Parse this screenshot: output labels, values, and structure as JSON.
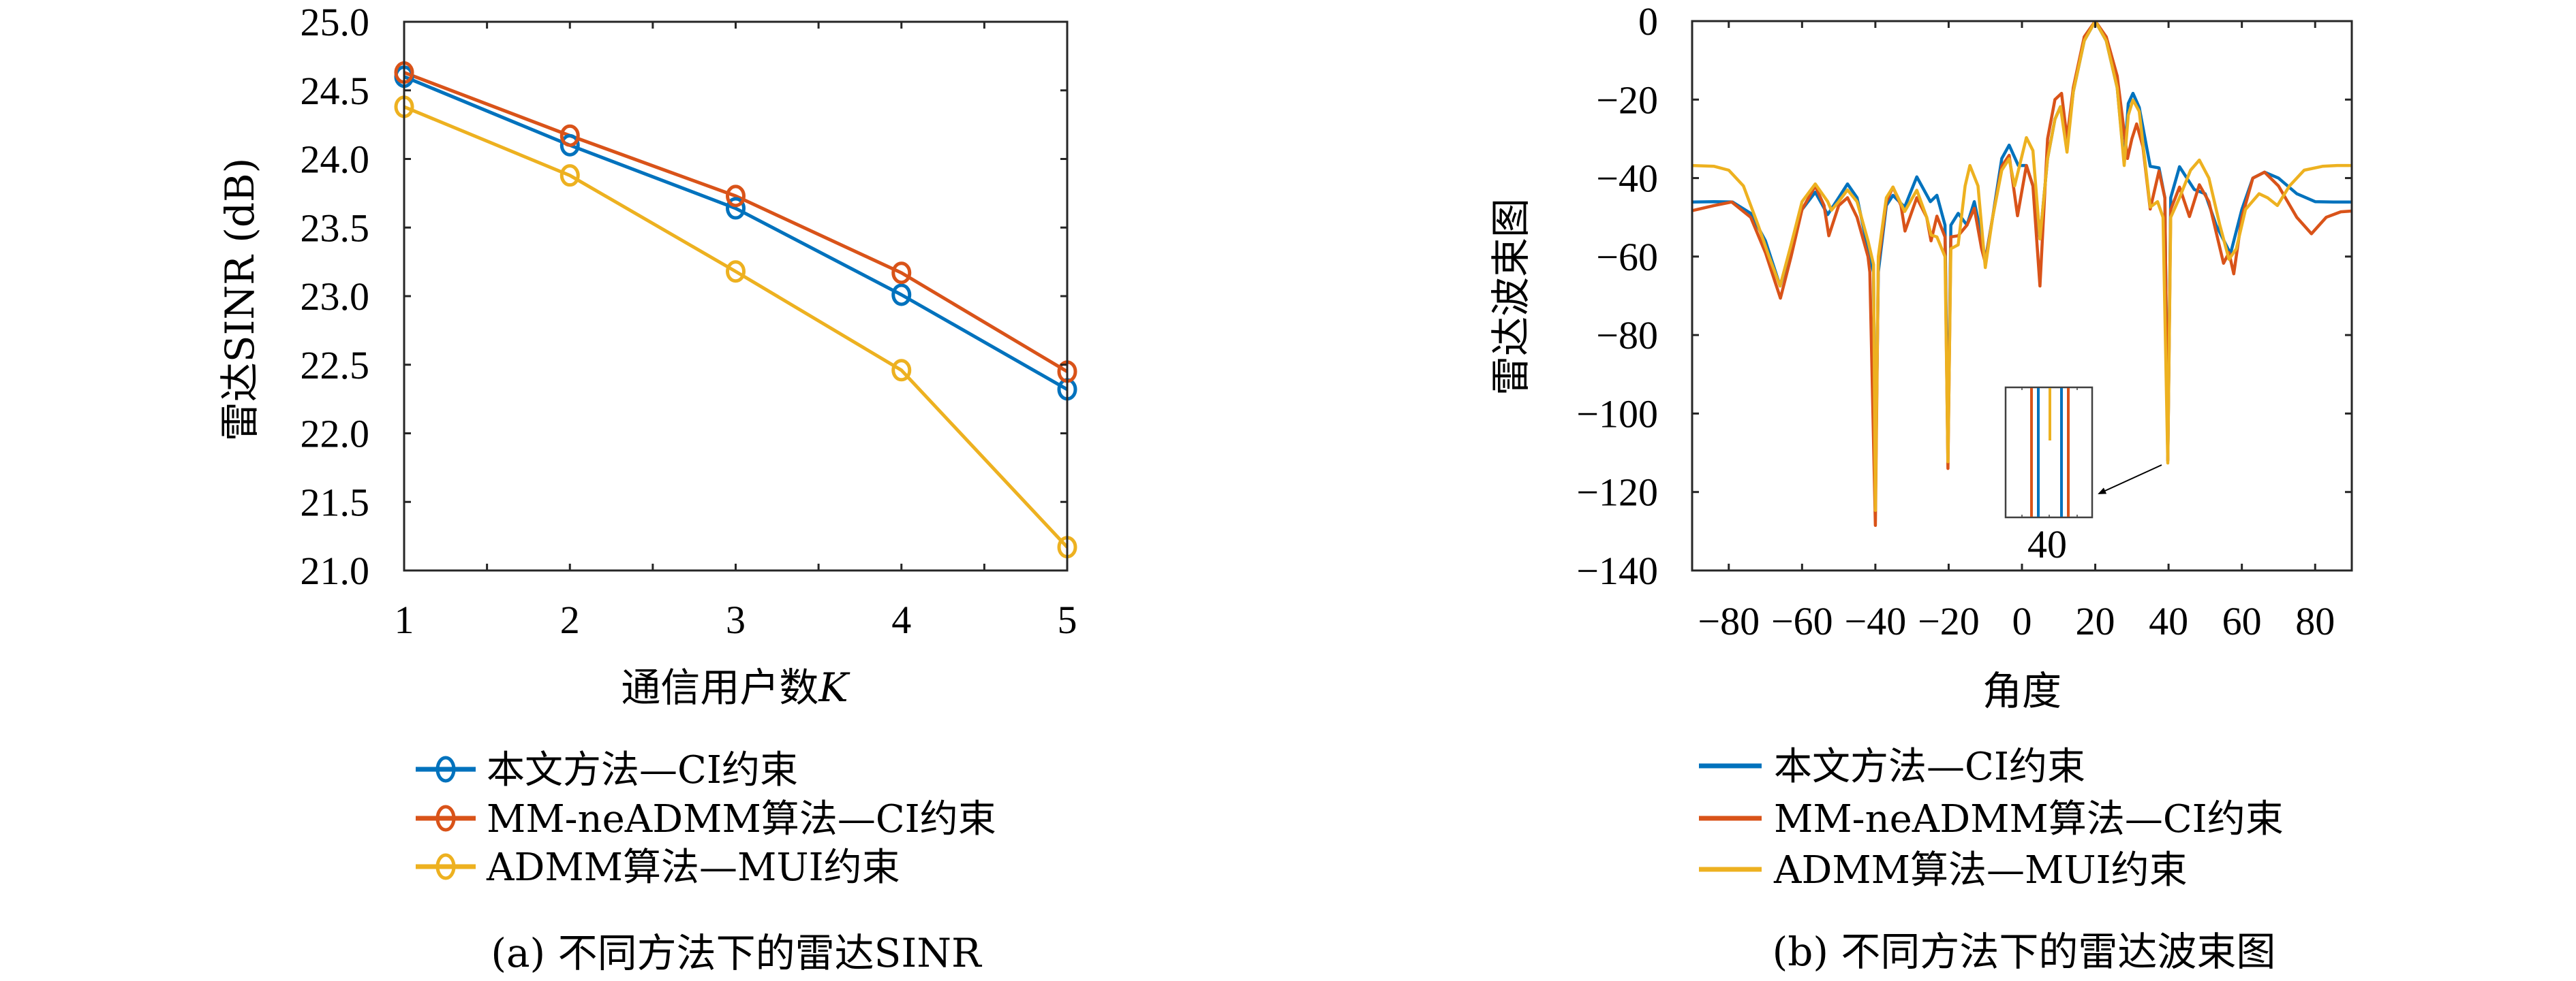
{
  "colors": {
    "blue": "#0072BD",
    "red": "#D95319",
    "yellow": "#EDB120",
    "axis": "#262626"
  },
  "chart_data": [
    {
      "type": "line",
      "title": "",
      "caption": "(a) 不同方法下的雷达SINR",
      "xlabel": "通信用户数K",
      "xlabel_main": "通信用户数",
      "xlabel_var": "K",
      "ylabel": "雷达SINR (dB)",
      "xlim": [
        1,
        5
      ],
      "ylim": [
        21.0,
        25.0
      ],
      "grid": false,
      "legend_position": "below",
      "x": [
        1,
        2,
        3,
        4,
        5
      ],
      "xticks": [
        1,
        2,
        3,
        4,
        5
      ],
      "xtick_labels": [
        "1",
        "2",
        "3",
        "4",
        "5"
      ],
      "yticks": [
        21.0,
        21.5,
        22.0,
        22.5,
        23.0,
        23.5,
        24.0,
        24.5,
        25.0
      ],
      "ytick_labels": [
        "21.0",
        "21.5",
        "22.0",
        "22.5",
        "23.0",
        "23.5",
        "24.0",
        "24.5",
        "25.0"
      ],
      "marker": "circle",
      "series": [
        {
          "name": "本文方法—CI约束",
          "color": "#0072BD",
          "values": [
            24.6,
            24.1,
            23.64,
            23.01,
            22.32
          ]
        },
        {
          "name": "MM-neADMM算法—CI约束",
          "color": "#D95319",
          "values": [
            24.63,
            24.17,
            23.73,
            23.17,
            22.45
          ]
        },
        {
          "name": "ADMM算法—MUI约束",
          "color": "#EDB120",
          "values": [
            24.38,
            23.88,
            23.18,
            22.46,
            21.17
          ]
        }
      ]
    },
    {
      "type": "line",
      "title": "",
      "caption": "(b) 不同方法下的雷达波束图",
      "xlabel": "角度",
      "ylabel": "雷达波束图",
      "xlim": [
        -90,
        90
      ],
      "ylim": [
        -140,
        0
      ],
      "grid": false,
      "legend_position": "below",
      "xticks": [
        -80,
        -60,
        -40,
        -20,
        0,
        20,
        40,
        60,
        80
      ],
      "xtick_labels": [
        "−80",
        "−60",
        "−40",
        "−20",
        "0",
        "20",
        "40",
        "60",
        "80"
      ],
      "yticks": [
        0,
        -20,
        -40,
        -60,
        -80,
        -100,
        -120,
        -140
      ],
      "ytick_labels": [
        "0",
        "−20",
        "−40",
        "−60",
        "−80",
        "−100",
        "−120",
        "−140"
      ],
      "inset": {
        "label": "40",
        "description_lines": [
          "red",
          "blue",
          "yellow",
          "blue",
          "red"
        ]
      },
      "series": [
        {
          "name": "本文方法—CI约束",
          "color": "#0072BD",
          "points": [
            [
              -90,
              -46.1
            ],
            [
              -84,
              -46
            ],
            [
              -79,
              -46.1
            ],
            [
              -74,
              -49
            ],
            [
              -70,
              -56
            ],
            [
              -66,
              -67.5
            ],
            [
              -63,
              -58
            ],
            [
              -60,
              -48
            ],
            [
              -56.4,
              -43.6
            ],
            [
              -53,
              -49.3
            ],
            [
              -50,
              -45
            ],
            [
              -47.6,
              -41.5
            ],
            [
              -45,
              -45
            ],
            [
              -42,
              -58
            ],
            [
              -40.5,
              -64
            ],
            [
              -40,
              -120
            ],
            [
              -39.2,
              -64
            ],
            [
              -37,
              -47
            ],
            [
              -35.2,
              -44.4
            ],
            [
              -32,
              -47.4
            ],
            [
              -28.7,
              -39.7
            ],
            [
              -25,
              -46
            ],
            [
              -23.2,
              -44.4
            ],
            [
              -21,
              -52
            ],
            [
              -20.2,
              -110
            ],
            [
              -19.4,
              -52
            ],
            [
              -17.4,
              -49
            ],
            [
              -15,
              -52
            ],
            [
              -13,
              -46
            ],
            [
              -11,
              -55
            ],
            [
              -10,
              -61
            ],
            [
              -8,
              -50
            ],
            [
              -5.5,
              -35
            ],
            [
              -3.5,
              -31.6
            ],
            [
              -1,
              -36.8
            ],
            [
              1.2,
              -36.8
            ],
            [
              3,
              -42
            ],
            [
              4.9,
              -55.5
            ],
            [
              7,
              -35
            ],
            [
              9,
              -25
            ],
            [
              10.5,
              -21.8
            ],
            [
              12.3,
              -31.7
            ],
            [
              14,
              -18
            ],
            [
              17,
              -5
            ],
            [
              20,
              0
            ],
            [
              23,
              -5
            ],
            [
              26,
              -17
            ],
            [
              27.9,
              -36
            ],
            [
              29,
              -21
            ],
            [
              30.3,
              -18.4
            ],
            [
              32,
              -22
            ],
            [
              35,
              -37
            ],
            [
              37.4,
              -37.4
            ],
            [
              39,
              -45
            ],
            [
              39.8,
              -112
            ],
            [
              40.6,
              -45
            ],
            [
              43,
              -37.1
            ],
            [
              47,
              -42.9
            ],
            [
              50,
              -44
            ],
            [
              53,
              -52
            ],
            [
              56.9,
              -59.3
            ],
            [
              60,
              -48
            ],
            [
              63,
              -40
            ],
            [
              66.2,
              -38.5
            ],
            [
              70,
              -40
            ],
            [
              75,
              -44
            ],
            [
              80,
              -46
            ],
            [
              85,
              -46.1
            ],
            [
              90,
              -46.1
            ]
          ]
        },
        {
          "name": "MM-neADMM算法—CI约束",
          "color": "#D95319",
          "points": [
            [
              -90,
              -48.3
            ],
            [
              -84,
              -47
            ],
            [
              -79.2,
              -46.1
            ],
            [
              -74,
              -50
            ],
            [
              -70,
              -59
            ],
            [
              -65.9,
              -70.6
            ],
            [
              -63,
              -60
            ],
            [
              -60,
              -48
            ],
            [
              -56.4,
              -42
            ],
            [
              -54,
              -47
            ],
            [
              -52.7,
              -54.7
            ],
            [
              -50,
              -47
            ],
            [
              -47.6,
              -45
            ],
            [
              -45,
              -50
            ],
            [
              -42,
              -60
            ],
            [
              -41.5,
              -64
            ],
            [
              -40,
              -128.5
            ],
            [
              -39.2,
              -62
            ],
            [
              -37,
              -46
            ],
            [
              -35.2,
              -42.3
            ],
            [
              -33,
              -47
            ],
            [
              -31.9,
              -53.5
            ],
            [
              -28.7,
              -45
            ],
            [
              -26,
              -50
            ],
            [
              -24.8,
              -56
            ],
            [
              -23.2,
              -49.7
            ],
            [
              -21,
              -55
            ],
            [
              -20.2,
              -114
            ],
            [
              -19.4,
              -55
            ],
            [
              -17.4,
              -54.7
            ],
            [
              -15,
              -52
            ],
            [
              -13,
              -47.7
            ],
            [
              -11,
              -58
            ],
            [
              -10,
              -61.6
            ],
            [
              -8,
              -50
            ],
            [
              -5.5,
              -37
            ],
            [
              -3.5,
              -34.2
            ],
            [
              -1.2,
              -49.6
            ],
            [
              1.2,
              -36.8
            ],
            [
              3,
              -42
            ],
            [
              4.9,
              -67.5
            ],
            [
              7,
              -30
            ],
            [
              9,
              -20
            ],
            [
              10.8,
              -18.4
            ],
            [
              12.3,
              -30
            ],
            [
              14,
              -17
            ],
            [
              17,
              -4
            ],
            [
              20,
              0
            ],
            [
              23,
              -4
            ],
            [
              26,
              -14
            ],
            [
              28.8,
              -35
            ],
            [
              30,
              -30
            ],
            [
              31.3,
              -26.2
            ],
            [
              33,
              -32
            ],
            [
              35,
              -47.9
            ],
            [
              37.4,
              -38.2
            ],
            [
              39,
              -45
            ],
            [
              39.8,
              -112
            ],
            [
              40.6,
              -48
            ],
            [
              43,
              -42.3
            ],
            [
              45.7,
              -49.8
            ],
            [
              48.4,
              -41.7
            ],
            [
              51,
              -46
            ],
            [
              55,
              -61.7
            ],
            [
              56.5,
              -59
            ],
            [
              57.8,
              -64.4
            ],
            [
              60,
              -50
            ],
            [
              63,
              -40
            ],
            [
              66.2,
              -38.5
            ],
            [
              70,
              -42
            ],
            [
              75,
              -50
            ],
            [
              79,
              -54.2
            ],
            [
              83,
              -50
            ],
            [
              87,
              -48.6
            ],
            [
              90,
              -48.4
            ]
          ]
        },
        {
          "name": "ADMM算法—MUI约束",
          "color": "#EDB120",
          "points": [
            [
              -90,
              -36.8
            ],
            [
              -84,
              -37
            ],
            [
              -80,
              -38
            ],
            [
              -76,
              -42
            ],
            [
              -72,
              -52
            ],
            [
              -69,
              -60
            ],
            [
              -66,
              -67.5
            ],
            [
              -63,
              -57
            ],
            [
              -60,
              -46
            ],
            [
              -56.4,
              -41.5
            ],
            [
              -53,
              -46
            ],
            [
              -52,
              -48.2
            ],
            [
              -50,
              -46
            ],
            [
              -47.6,
              -43
            ],
            [
              -45,
              -46
            ],
            [
              -42,
              -56
            ],
            [
              -40.5,
              -62
            ],
            [
              -40,
              -124.7
            ],
            [
              -39.2,
              -60
            ],
            [
              -37,
              -45
            ],
            [
              -35.2,
              -42.3
            ],
            [
              -32,
              -48.5
            ],
            [
              -28.7,
              -43.1
            ],
            [
              -26,
              -50
            ],
            [
              -24.8,
              -54.5
            ],
            [
              -23.2,
              -55
            ],
            [
              -21,
              -60
            ],
            [
              -20.2,
              -112.3
            ],
            [
              -19.4,
              -58
            ],
            [
              -17.4,
              -57
            ],
            [
              -15.5,
              -42
            ],
            [
              -14.2,
              -36.8
            ],
            [
              -12,
              -42
            ],
            [
              -10,
              -62.8
            ],
            [
              -8,
              -50
            ],
            [
              -5.5,
              -38
            ],
            [
              -3.5,
              -35.1
            ],
            [
              -2,
              -42
            ],
            [
              1.2,
              -29.7
            ],
            [
              3,
              -33
            ],
            [
              4.9,
              -55.5
            ],
            [
              7,
              -35
            ],
            [
              9,
              -25
            ],
            [
              10.5,
              -21.8
            ],
            [
              12.3,
              -33.4
            ],
            [
              14,
              -18
            ],
            [
              17,
              -5
            ],
            [
              20,
              0
            ],
            [
              23,
              -5
            ],
            [
              26,
              -17
            ],
            [
              27.9,
              -36.8
            ],
            [
              29,
              -24
            ],
            [
              30.3,
              -20.1
            ],
            [
              32,
              -23
            ],
            [
              35,
              -47.4
            ],
            [
              37,
              -46
            ],
            [
              38.5,
              -50
            ],
            [
              39.8,
              -112.6
            ],
            [
              40.6,
              -50
            ],
            [
              43,
              -45
            ],
            [
              46,
              -38
            ],
            [
              48.4,
              -35.4
            ],
            [
              51,
              -40
            ],
            [
              54,
              -52
            ],
            [
              56.5,
              -60.7
            ],
            [
              58.5,
              -58
            ],
            [
              61,
              -48
            ],
            [
              64.7,
              -44
            ],
            [
              67,
              -45
            ],
            [
              69.7,
              -47
            ],
            [
              73,
              -42
            ],
            [
              77,
              -38
            ],
            [
              82,
              -37
            ],
            [
              86,
              -36.8
            ],
            [
              90,
              -36.8
            ]
          ]
        }
      ]
    }
  ]
}
